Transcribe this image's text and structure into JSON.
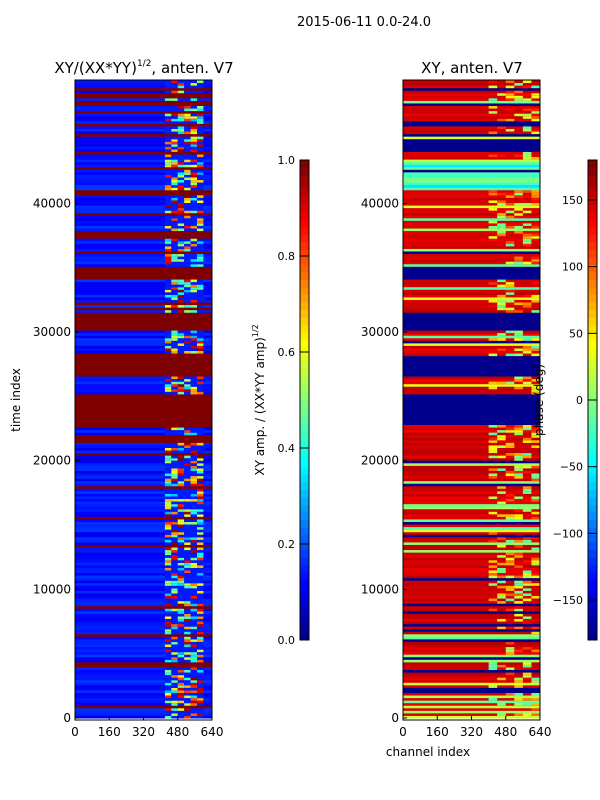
{
  "suptitle": "2015-06-11 0.0-24.0",
  "chart_data": [
    {
      "type": "heatmap",
      "title": "XY/(XX*YY)^1/2, anten. V7",
      "title_main": "XY/(XX*YY)",
      "title_sup": "1/2",
      "title_tail": ", anten. V7",
      "xlabel": "",
      "ylabel": "time index",
      "xlim": [
        0,
        640
      ],
      "ylim": [
        0,
        49600
      ],
      "xticks": [
        "0",
        "160",
        "320",
        "480",
        "640"
      ],
      "yticks": [
        "0",
        "10000",
        "20000",
        "30000",
        "40000"
      ],
      "colorbar": {
        "label_main": "XY amp. / (XX*YY amp)",
        "label_sup": "1/2",
        "range": [
          0,
          1
        ],
        "ticks": [
          "0.0",
          "0.2",
          "0.4",
          "0.6",
          "0.8",
          "1.0"
        ],
        "cmap": "jet"
      },
      "saturated_bands": [
        [
          3800,
          4200
        ],
        [
          22500,
          25000
        ],
        [
          26500,
          28000
        ],
        [
          30000,
          31500
        ],
        [
          34000,
          35000
        ],
        [
          37200,
          37800
        ],
        [
          40500,
          41000
        ],
        [
          48200,
          48600
        ]
      ],
      "bright_channel_range": [
        420,
        600
      ],
      "background_value": 0.1
    },
    {
      "type": "heatmap",
      "title": "XY, anten. V7",
      "xlabel": "channel index",
      "ylabel": "",
      "xlim": [
        0,
        640
      ],
      "ylim": [
        0,
        49600
      ],
      "xticks": [
        "0",
        "160",
        "320",
        "480",
        "640"
      ],
      "yticks": [
        "0",
        "10000",
        "20000",
        "30000",
        "40000"
      ],
      "colorbar": {
        "label": "phase (deg)",
        "range": [
          -180,
          180
        ],
        "ticks": [
          "−150",
          "−100",
          "−50",
          "0",
          "50",
          "100",
          "150"
        ],
        "cmap": "jet"
      },
      "low_phase_bands": [
        [
          22800,
          25000
        ],
        [
          26500,
          28000
        ],
        [
          30000,
          31500
        ],
        [
          34000,
          35000
        ],
        [
          44000,
          45000
        ]
      ],
      "mixed_band": [
        41000,
        43200
      ],
      "background_value": 150
    }
  ]
}
